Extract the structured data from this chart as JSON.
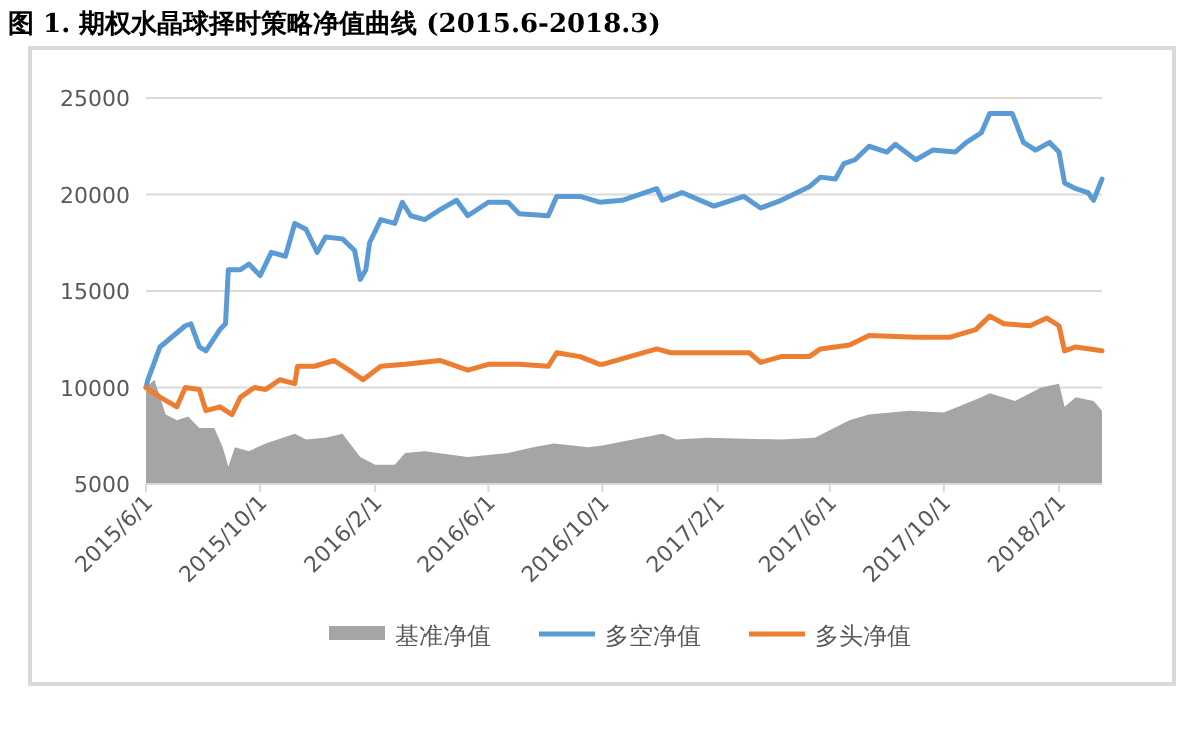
{
  "chart_data": {
    "type": "line",
    "title": "图 1. 期权水晶球择时策略净值曲线 (2015.6-2018.3)",
    "xlim": [
      "2015-06-01",
      "2018-03-19"
    ],
    "xticks": [
      {
        "value": "2015-06-01",
        "label": "2015/6/1"
      },
      {
        "value": "2015-10-01",
        "label": "2015/10/1"
      },
      {
        "value": "2016-02-01",
        "label": "2016/2/1"
      },
      {
        "value": "2016-06-01",
        "label": "2016/6/1"
      },
      {
        "value": "2016-10-01",
        "label": "2016/10/1"
      },
      {
        "value": "2017-02-01",
        "label": "2017/2/1"
      },
      {
        "value": "2017-06-01",
        "label": "2017/6/1"
      },
      {
        "value": "2017-10-01",
        "label": "2017/10/1"
      },
      {
        "value": "2018-02-01",
        "label": "2018/2/1"
      }
    ],
    "ylim": [
      5000,
      25000
    ],
    "yticks": [
      5000,
      10000,
      15000,
      20000,
      25000
    ],
    "grid": "y",
    "legend": "bottom",
    "series": [
      {
        "name": "基准净值",
        "type": "area",
        "color": "#a5a5a5",
        "x": [
          "2015-06-01",
          "2015-06-10",
          "2015-06-22",
          "2015-07-04",
          "2015-07-16",
          "2015-07-28",
          "2015-08-13",
          "2015-08-22",
          "2015-08-28",
          "2015-09-04",
          "2015-09-19",
          "2015-10-07",
          "2015-11-07",
          "2015-11-19",
          "2015-12-10",
          "2015-12-28",
          "2016-01-16",
          "2016-02-01",
          "2016-02-22",
          "2016-03-04",
          "2016-03-25",
          "2016-05-10",
          "2016-06-22",
          "2016-07-19",
          "2016-08-10",
          "2016-09-16",
          "2016-10-01",
          "2016-12-04",
          "2016-12-19",
          "2017-01-22",
          "2017-04-10",
          "2017-05-16",
          "2017-06-22",
          "2017-07-13",
          "2017-08-25",
          "2017-10-01",
          "2017-11-10",
          "2017-11-19",
          "2017-12-16",
          "2018-01-13",
          "2018-02-01",
          "2018-02-07",
          "2018-02-19",
          "2018-03-10",
          "2018-03-19"
        ],
        "values": [
          10000,
          10400,
          8600,
          8300,
          8500,
          7900,
          7900,
          6900,
          5900,
          6900,
          6700,
          7100,
          7600,
          7300,
          7400,
          7600,
          6400,
          6000,
          6000,
          6600,
          6700,
          6400,
          6600,
          6900,
          7100,
          6900,
          7000,
          7600,
          7300,
          7400,
          7300,
          7400,
          8300,
          8600,
          8800,
          8700,
          9500,
          9700,
          9300,
          10000,
          10200,
          9000,
          9500,
          9300,
          8800
        ]
      },
      {
        "name": "多空净值",
        "color": "#5b9bd5",
        "x": [
          "2015-06-01",
          "2015-06-03",
          "2015-06-16",
          "2015-07-13",
          "2015-07-19",
          "2015-07-28",
          "2015-08-04",
          "2015-08-19",
          "2015-08-25",
          "2015-08-28",
          "2015-09-10",
          "2015-09-19",
          "2015-10-01",
          "2015-10-13",
          "2015-10-28",
          "2015-11-07",
          "2015-11-19",
          "2015-12-01",
          "2015-12-10",
          "2015-12-28",
          "2016-01-10",
          "2016-01-16",
          "2016-01-22",
          "2016-01-26",
          "2016-02-07",
          "2016-02-22",
          "2016-03-01",
          "2016-03-10",
          "2016-03-25",
          "2016-04-10",
          "2016-04-28",
          "2016-05-10",
          "2016-06-01",
          "2016-06-22",
          "2016-07-04",
          "2016-08-04",
          "2016-08-13",
          "2016-09-07",
          "2016-09-28",
          "2016-10-22",
          "2016-11-28",
          "2016-12-04",
          "2016-12-25",
          "2017-01-28",
          "2017-03-01",
          "2017-03-19",
          "2017-04-10",
          "2017-05-10",
          "2017-05-22",
          "2017-06-07",
          "2017-06-16",
          "2017-06-28",
          "2017-07-13",
          "2017-08-01",
          "2017-08-10",
          "2017-09-01",
          "2017-09-19",
          "2017-10-13",
          "2017-10-25",
          "2017-11-10",
          "2017-11-19",
          "2017-12-13",
          "2017-12-25",
          "2018-01-07",
          "2018-01-22",
          "2018-02-01",
          "2018-02-07",
          "2018-02-19",
          "2018-03-04",
          "2018-03-10",
          "2018-03-19"
        ],
        "values": [
          10000,
          10400,
          12100,
          13200,
          13300,
          12100,
          11900,
          13000,
          13300,
          16100,
          16100,
          16400,
          15800,
          17000,
          16800,
          18500,
          18200,
          17000,
          17800,
          17700,
          17100,
          15600,
          16100,
          17500,
          18700,
          18500,
          19600,
          18900,
          18700,
          19200,
          19700,
          18900,
          19600,
          19600,
          19000,
          18900,
          19900,
          19900,
          19600,
          19700,
          20300,
          19700,
          20100,
          19400,
          19900,
          19300,
          19700,
          20400,
          20900,
          20800,
          21600,
          21800,
          22500,
          22200,
          22600,
          21800,
          22300,
          22200,
          22700,
          23200,
          24200,
          24200,
          22700,
          22300,
          22700,
          22200,
          20600,
          20300,
          20100,
          19700,
          20800
        ]
      },
      {
        "name": "多头净值",
        "color": "#ed7d31",
        "x": [
          "2015-06-01",
          "2015-06-16",
          "2015-07-04",
          "2015-07-13",
          "2015-07-28",
          "2015-08-04",
          "2015-08-19",
          "2015-09-01",
          "2015-09-10",
          "2015-09-25",
          "2015-10-07",
          "2015-10-22",
          "2015-11-07",
          "2015-11-10",
          "2015-11-28",
          "2015-12-19",
          "2016-01-04",
          "2016-01-19",
          "2016-02-07",
          "2016-03-04",
          "2016-04-10",
          "2016-05-10",
          "2016-06-01",
          "2016-07-04",
          "2016-08-04",
          "2016-08-13",
          "2016-09-07",
          "2016-09-28",
          "2016-10-01",
          "2016-11-28",
          "2016-12-13",
          "2017-02-01",
          "2017-03-07",
          "2017-03-19",
          "2017-04-10",
          "2017-05-10",
          "2017-05-22",
          "2017-06-22",
          "2017-07-13",
          "2017-09-01",
          "2017-10-07",
          "2017-11-04",
          "2017-11-19",
          "2017-12-04",
          "2018-01-01",
          "2018-01-19",
          "2018-02-01",
          "2018-02-07",
          "2018-02-19",
          "2018-03-19"
        ],
        "values": [
          10000,
          9500,
          9000,
          10000,
          9900,
          8800,
          9000,
          8600,
          9500,
          10000,
          9900,
          10400,
          10200,
          11100,
          11100,
          11400,
          10900,
          10400,
          11100,
          11200,
          11400,
          10900,
          11200,
          11200,
          11100,
          11800,
          11600,
          11200,
          11200,
          12000,
          11800,
          11800,
          11800,
          11300,
          11600,
          11600,
          12000,
          12200,
          12700,
          12600,
          12600,
          13000,
          13700,
          13300,
          13200,
          13600,
          13200,
          11900,
          12100,
          11900
        ]
      }
    ]
  }
}
